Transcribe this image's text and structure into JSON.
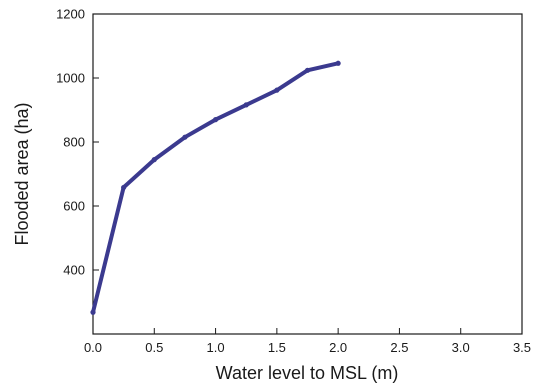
{
  "chart_data": {
    "type": "line",
    "title": "",
    "xlabel": "Water level to MSL (m)",
    "ylabel": "Flooded area (ha)",
    "xlim": [
      0,
      3.5
    ],
    "ylim": [
      200,
      1200
    ],
    "x_ticks": [
      "0.0",
      "0.5",
      "1.0",
      "1.5",
      "2.0",
      "2.5",
      "3.0",
      "3.5"
    ],
    "y_ticks": [
      "400",
      "600",
      "800",
      "1000",
      "1200"
    ],
    "grid": false,
    "series": [
      {
        "color": "#3b3a8f",
        "x": [
          0.0,
          0.25,
          0.5,
          0.75,
          1.0,
          1.25,
          1.5,
          1.75,
          2.0
        ],
        "y": [
          268,
          658,
          745,
          815,
          870,
          916,
          962,
          1024,
          1046
        ]
      }
    ]
  }
}
